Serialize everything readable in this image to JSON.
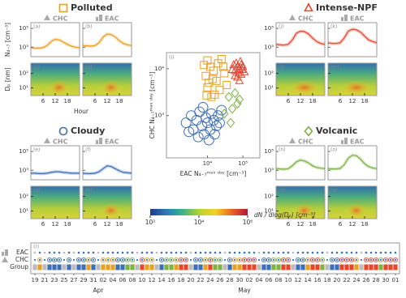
{
  "chart_data": [
    {
      "type": "scatter",
      "letter": "(i)",
      "xlabel": "EAC N₄₋₇ᵐᵃˣ ᵈᵃʸ [cm⁻³]",
      "ylabel": "CHC N₄₋₇ᵐᵃˣ ᵈᵃʸ [cm⁻³]",
      "xscale": "log",
      "yscale": "log",
      "xlim": [
        700,
        300000
      ],
      "ylim": [
        125,
        22000
      ],
      "xticks": [
        {
          "value": 10000,
          "label": "10⁴"
        },
        {
          "value": 100000,
          "label": "10⁵"
        }
      ],
      "yticks": [
        {
          "value": 1000,
          "label": "10³"
        },
        {
          "value": 10000,
          "label": "10⁴"
        }
      ],
      "series": [
        {
          "name": "Polluted",
          "color": "#e8a020",
          "marker": "square",
          "x": [
            8000,
            10000,
            12000,
            15000,
            9000,
            20000,
            25000,
            11000,
            14000,
            18000,
            10000,
            30000,
            22000,
            13000,
            16000,
            35000,
            28000,
            9500
          ],
          "values": [
            12000,
            15000,
            11000,
            9000,
            7000,
            13000,
            16000,
            5000,
            6000,
            5500,
            4000,
            8000,
            3500,
            2500,
            2800,
            4500,
            11000,
            2700
          ]
        },
        {
          "name": "Intense-NPF",
          "color": "#e8452c",
          "marker": "triangle",
          "x": [
            60000,
            70000,
            80000,
            65000,
            90000,
            75000,
            55000,
            85000,
            95000,
            100000,
            70000,
            60000,
            110000,
            80000,
            50000,
            90000
          ],
          "values": [
            9000,
            11000,
            10000,
            13000,
            12000,
            8000,
            12000,
            14000,
            9500,
            11000,
            6500,
            7000,
            8500,
            5500,
            9500,
            7500
          ]
        },
        {
          "name": "Cloudy",
          "color": "#3d6fb6",
          "marker": "circle",
          "x": [
            2500,
            3500,
            4000,
            5000,
            6000,
            7000,
            8000,
            9000,
            10000,
            12000,
            13000,
            15000,
            18000,
            20000,
            25000,
            3000,
            5500,
            11000,
            16000,
            7500,
            22000
          ],
          "values": [
            700,
            1000,
            500,
            800,
            1200,
            600,
            400,
            900,
            700,
            500,
            1100,
            800,
            600,
            1000,
            1300,
            450,
            350,
            300,
            400,
            1500,
            700
          ]
        },
        {
          "name": "Volcanic",
          "color": "#7cb342",
          "marker": "diamond",
          "x": [
            40000,
            60000,
            70000,
            50000,
            30000,
            80000,
            45000
          ],
          "values": [
            2500,
            3000,
            1800,
            1400,
            1100,
            2200,
            700
          ]
        }
      ]
    },
    {
      "type": "diurnal",
      "xlabel": "Hour",
      "ylabel": "N₄₋₇ [cm⁻³]",
      "dp_label": "Dₚ [nm]",
      "stations": [
        "CHC",
        "EAC"
      ],
      "x": [
        0,
        2,
        4,
        6,
        8,
        10,
        12,
        14,
        16,
        18,
        20,
        22,
        24
      ],
      "xlim": [
        0,
        24
      ],
      "xticks": [
        6,
        12,
        18
      ],
      "yscale": "log",
      "ylim": [
        100,
        400000
      ],
      "yticks": [
        {
          "value": 1000,
          "label": "10³"
        },
        {
          "value": 100000,
          "label": "10⁵"
        }
      ],
      "dp_ylim": [
        3,
        500
      ],
      "dp_yticks": [
        {
          "value": 10,
          "label": "10¹"
        },
        {
          "value": 100,
          "label": "10²"
        }
      ],
      "groups": [
        {
          "letters": [
            "(a)",
            "(b)",
            "(c)",
            "(d)"
          ],
          "series": [
            [
              900,
              800,
              800,
              900,
              1500,
              4000,
              7000,
              6000,
              3500,
              2000,
              1300,
              1000,
              900
            ],
            [
              1500,
              1400,
              1300,
              1500,
              3000,
              12000,
              25000,
              22000,
              12000,
              5000,
              2500,
              1800,
              1500
            ]
          ]
        },
        {
          "letters": [
            "(j)",
            "(k)",
            "(l)",
            "(m)"
          ],
          "series": [
            [
              2000,
              1800,
              1700,
              2000,
              6000,
              30000,
              50000,
              45000,
              25000,
              9000,
              4000,
              2500,
              2000
            ],
            [
              3000,
              2500,
              2500,
              3000,
              10000,
              50000,
              80000,
              70000,
              40000,
              15000,
              6000,
              4000,
              3000
            ]
          ]
        },
        {
          "letters": [
            "(e)",
            "(f)",
            "(g)",
            "(h)"
          ],
          "series": [
            [
              500,
              500,
              450,
              450,
              500,
              600,
              700,
              700,
              600,
              550,
              500,
              500,
              500
            ],
            [
              500,
              450,
              450,
              500,
              700,
              1500,
              3000,
              2500,
              1500,
              900,
              600,
              550,
              500
            ]
          ]
        },
        {
          "letters": [
            "(n)",
            "(o)",
            "(p)",
            "(q)"
          ],
          "series": [
            [
              1500,
              1400,
              1300,
              1500,
              3000,
              8000,
              12000,
              10000,
              6000,
              3000,
              2000,
              1700,
              1500
            ],
            [
              1500,
              1400,
              1400,
              1600,
              4000,
              20000,
              40000,
              35000,
              15000,
              5000,
              2500,
              1800,
              1500
            ]
          ]
        }
      ]
    },
    {
      "type": "colorbar",
      "label": "dN / dlog(Dₚ) [cm⁻³]",
      "xscale": "log",
      "xlim": [
        100,
        1000000
      ],
      "xticks": [
        {
          "value": 100,
          "label": "10²"
        },
        {
          "value": 10000,
          "label": "10⁴"
        },
        {
          "value": 1000000,
          "label": "10⁶"
        }
      ],
      "colors": [
        "#1f3a93",
        "#2b7bba",
        "#3cb38a",
        "#b5d334",
        "#f2d22b",
        "#e8692a",
        "#b2182b"
      ]
    },
    {
      "type": "timeline",
      "letter": "(r)",
      "rows": [
        "EAC",
        "CHC",
        "Group"
      ],
      "unclassified_color": "#bbbbbb",
      "ticks": [
        "19",
        "21",
        "23",
        "25",
        "27",
        "29",
        "31",
        "02",
        "04",
        "06",
        "08",
        "10",
        "12",
        "14",
        "16",
        "18",
        "20",
        "22",
        "24",
        "26",
        "28",
        "30",
        "02",
        "04",
        "06",
        "08",
        "10",
        "12",
        "14",
        "16",
        "18",
        "20",
        "22",
        "24",
        "26",
        "28",
        "30",
        "01"
      ],
      "months": [
        "Apr",
        "May"
      ],
      "groups": [
        null,
        0,
        null,
        2,
        2,
        2,
        null,
        2,
        null,
        2,
        2,
        0,
        2,
        null,
        0,
        0,
        0,
        2,
        2,
        3,
        3,
        null,
        1,
        0,
        0,
        null,
        2,
        3,
        3,
        0,
        1,
        1,
        null,
        2,
        2,
        0,
        1,
        3,
        3,
        null,
        2,
        0,
        0,
        1,
        1,
        1,
        null,
        2,
        2,
        3,
        3,
        1,
        1,
        null,
        2,
        2,
        0,
        1,
        1,
        3,
        null,
        2,
        2,
        1,
        1,
        1,
        0,
        null,
        1,
        1,
        1,
        3,
        1,
        1,
        1
      ]
    }
  ]
}
